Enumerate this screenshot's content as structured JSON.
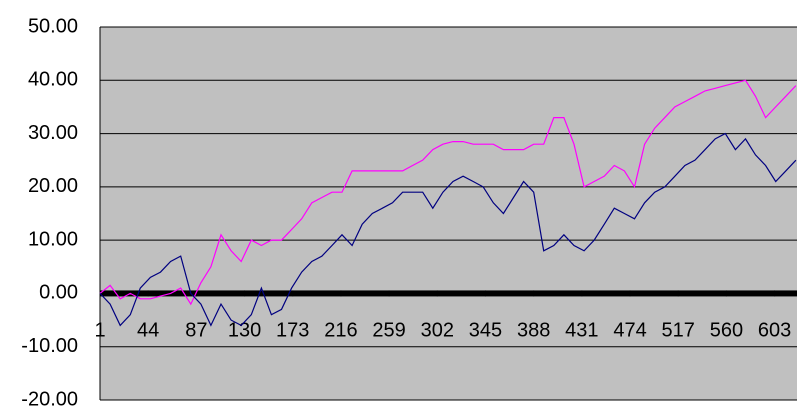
{
  "chart_data": {
    "type": "line",
    "x": [
      1,
      10,
      19,
      28,
      37,
      46,
      55,
      64,
      73,
      82,
      91,
      100,
      109,
      118,
      127,
      136,
      145,
      154,
      163,
      172,
      181,
      190,
      199,
      208,
      217,
      226,
      235,
      244,
      253,
      262,
      271,
      280,
      289,
      298,
      307,
      316,
      325,
      334,
      343,
      352,
      361,
      370,
      379,
      388,
      397,
      406,
      415,
      424,
      433,
      442,
      451,
      460,
      469,
      478,
      487,
      496,
      505,
      514,
      523,
      532,
      541,
      550,
      559,
      568,
      577,
      586,
      595,
      604,
      613,
      622
    ],
    "series": [
      {
        "color": "#ff00ff",
        "values": [
          0,
          1.5,
          -1,
          0,
          -1,
          -1,
          -0.5,
          0,
          1,
          -2,
          2,
          5,
          11,
          8,
          6,
          10,
          9,
          10,
          10,
          12,
          14,
          17,
          18,
          19,
          19,
          23,
          23,
          23,
          23,
          23,
          23,
          24,
          25,
          27,
          28,
          28.5,
          28.5,
          28,
          28,
          28,
          27,
          27,
          27,
          28,
          28,
          33,
          33,
          28,
          20,
          21,
          22,
          24,
          23,
          20,
          28,
          31,
          33,
          35,
          36,
          37,
          38,
          38.5,
          39,
          39.5,
          40,
          37,
          33,
          35,
          37,
          39
        ]
      },
      {
        "color": "#000080",
        "values": [
          0,
          -2,
          -6,
          -4,
          1,
          3,
          4,
          6,
          7,
          0,
          -2,
          -6,
          -2,
          -5,
          -6,
          -4,
          1,
          -4,
          -3,
          1,
          4,
          6,
          7,
          9,
          11,
          9,
          13,
          15,
          16,
          17,
          19,
          19,
          19,
          16,
          19,
          21,
          22,
          21,
          20,
          17,
          15,
          18,
          21,
          19,
          8,
          9,
          11,
          9,
          8,
          10,
          13,
          16,
          15,
          14,
          17,
          19,
          20,
          22,
          24,
          25,
          27,
          29,
          30,
          27,
          29,
          26,
          24,
          21,
          23,
          25
        ]
      }
    ],
    "xlim": [
      1,
      623
    ],
    "xticks": [
      1,
      44,
      87,
      130,
      173,
      216,
      259,
      302,
      345,
      388,
      431,
      474,
      517,
      560,
      603
    ],
    "ylim": [
      -20,
      50
    ],
    "yticks": [
      {
        "value": -20,
        "label": "-20.00"
      },
      {
        "value": -10,
        "label": "-10.00"
      },
      {
        "value": 0,
        "label": "0.00"
      },
      {
        "value": 10,
        "label": "10.00"
      },
      {
        "value": 20,
        "label": "20.00"
      },
      {
        "value": 30,
        "label": "30.00"
      },
      {
        "value": 40,
        "label": "40.00"
      },
      {
        "value": 50,
        "label": "50.00"
      }
    ],
    "grid": true
  }
}
